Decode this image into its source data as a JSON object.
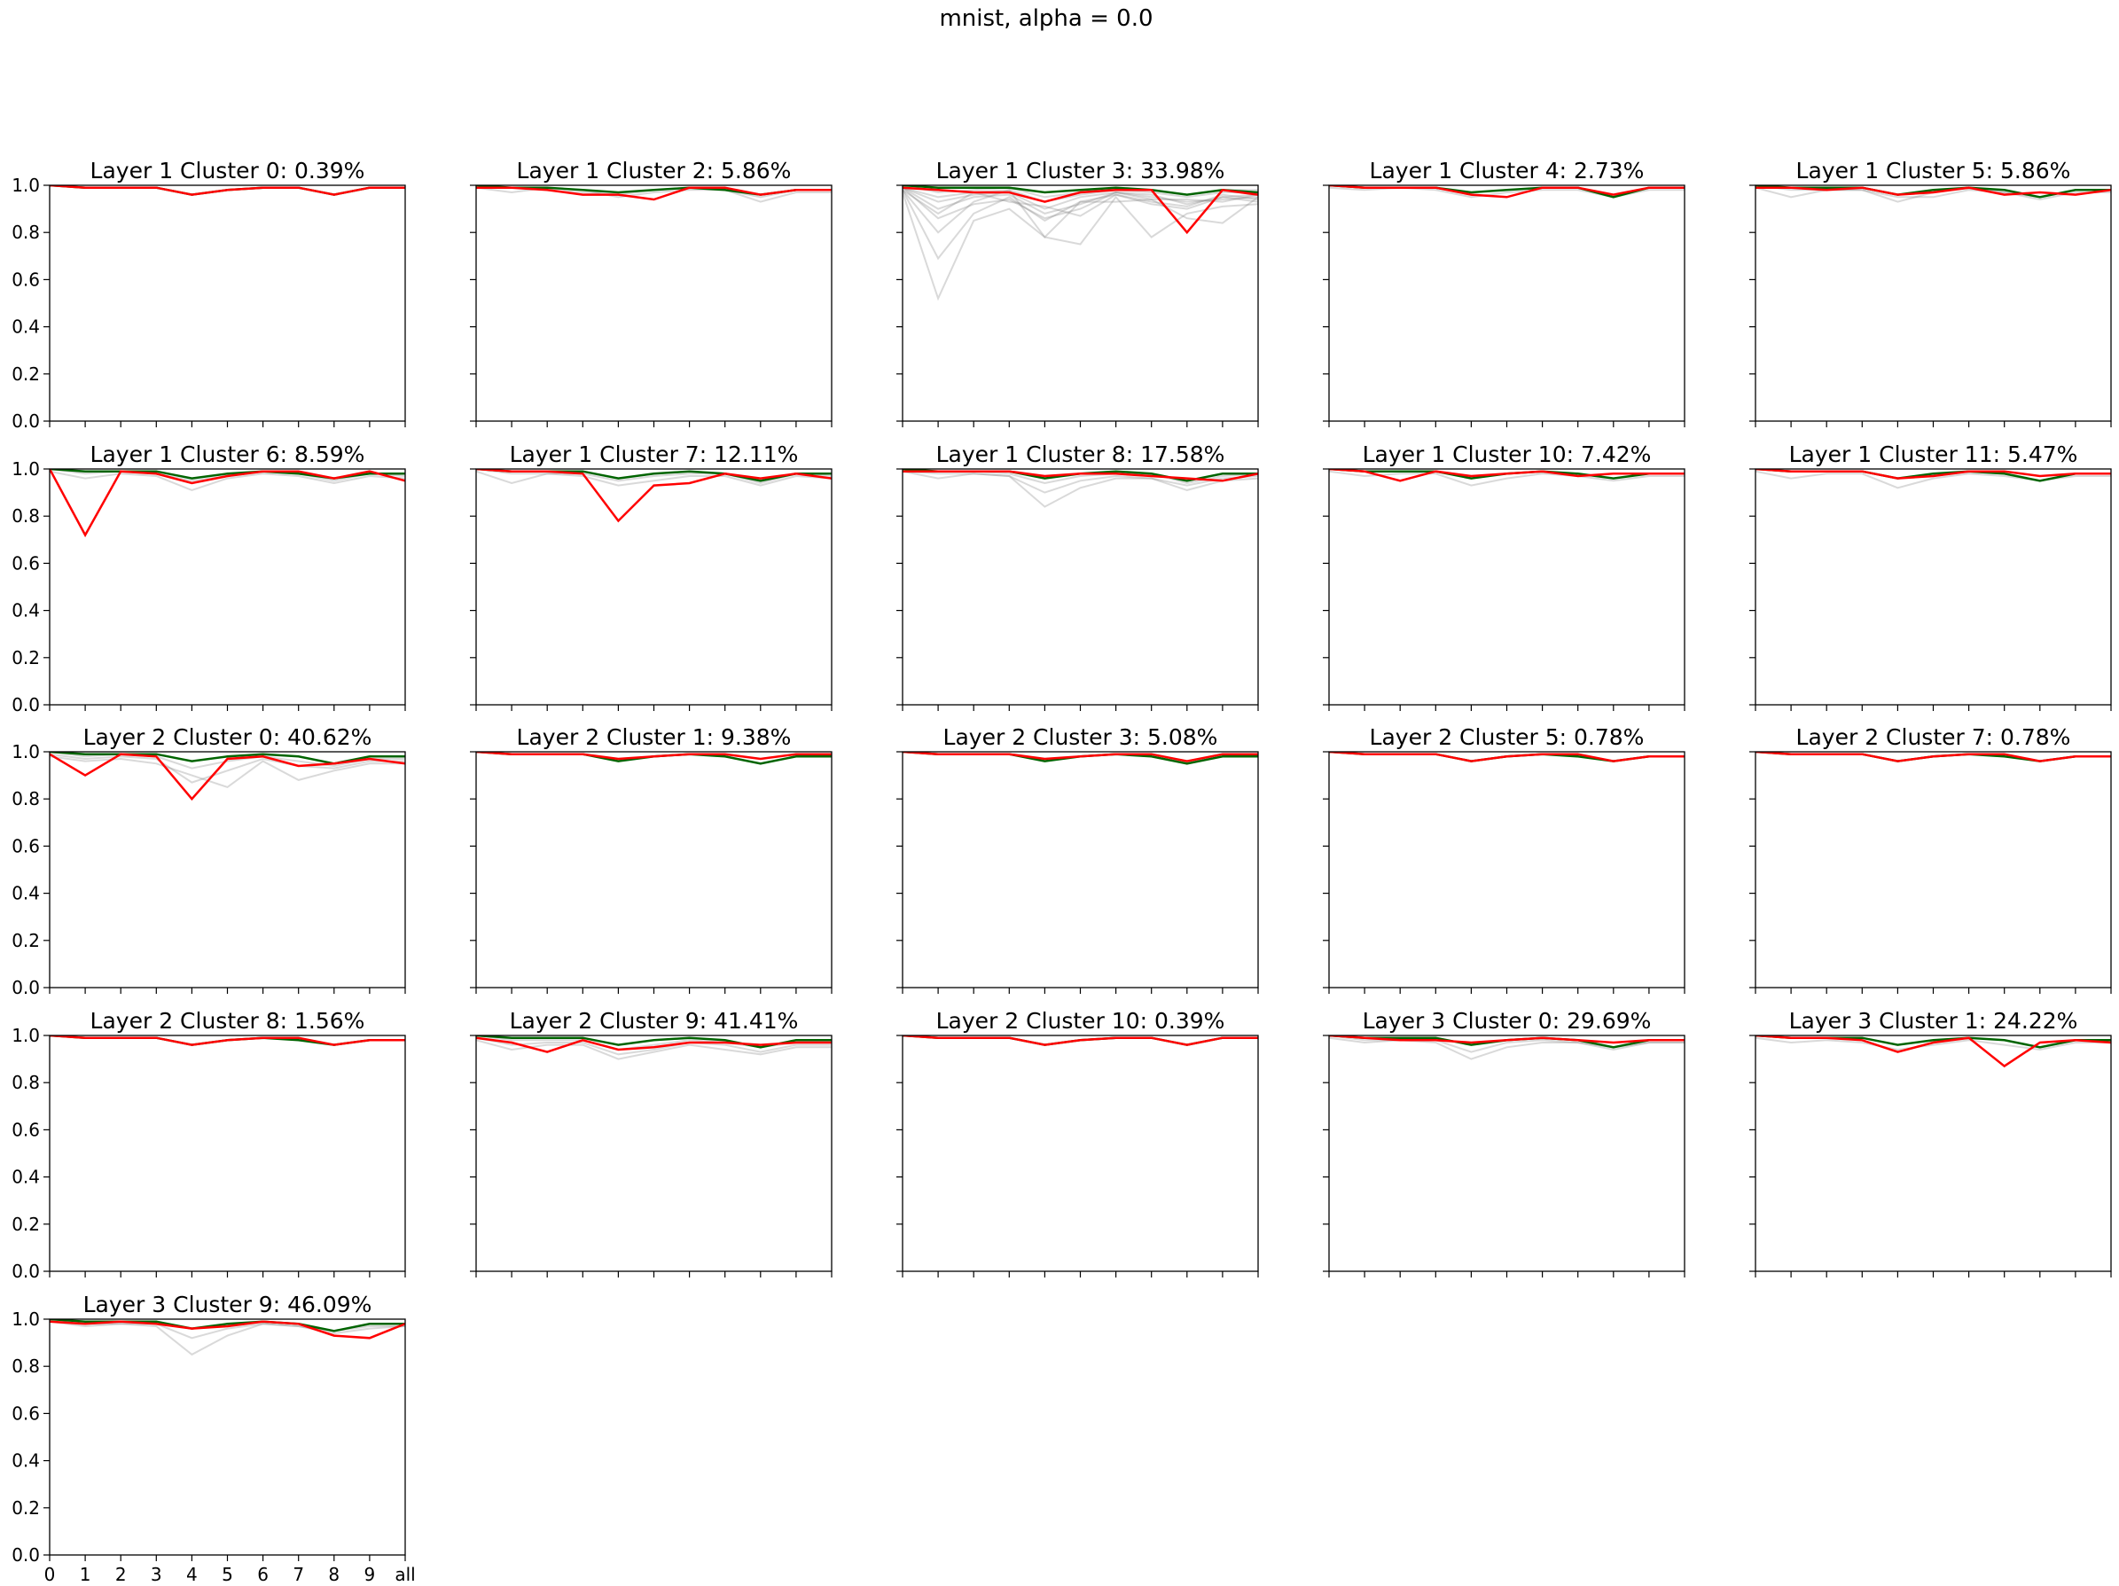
{
  "title": "mnist, alpha = 0.0",
  "chart_data": {
    "type": "line",
    "x_categories": [
      "0",
      "1",
      "2",
      "3",
      "4",
      "5",
      "6",
      "7",
      "8",
      "9",
      "all"
    ],
    "ylim": [
      0.0,
      1.0
    ],
    "yticks": [
      "0.0",
      "0.2",
      "0.4",
      "0.6",
      "0.8",
      "1.0"
    ],
    "colors": {
      "highlight": "#ff0000",
      "top": "#006400",
      "background": "#808080"
    },
    "panels": [
      {
        "title": "Layer 1 Cluster 0: 0.39%",
        "red": [
          1.0,
          0.99,
          0.99,
          0.99,
          0.96,
          0.98,
          0.99,
          0.99,
          0.96,
          0.99,
          0.99
        ],
        "green": [
          1.0,
          0.99,
          0.99,
          0.99,
          0.96,
          0.98,
          0.99,
          0.99,
          0.96,
          0.99,
          0.99
        ],
        "gray": []
      },
      {
        "title": "Layer 1 Cluster 2: 5.86%",
        "red": [
          0.99,
          0.99,
          0.98,
          0.96,
          0.96,
          0.94,
          0.99,
          0.99,
          0.96,
          0.98,
          0.98
        ],
        "green": [
          1.0,
          0.99,
          0.99,
          0.98,
          0.97,
          0.98,
          0.99,
          0.98,
          0.96,
          0.98,
          0.98
        ],
        "gray": [
          [
            0.99,
            0.97,
            0.99,
            0.98,
            0.95,
            0.97,
            0.98,
            0.98,
            0.93,
            0.97,
            0.97
          ],
          [
            1.0,
            0.99,
            0.98,
            0.97,
            0.96,
            0.98,
            0.99,
            0.98,
            0.95,
            0.98,
            0.98
          ]
        ]
      },
      {
        "title": "Layer 1 Cluster 3: 33.98%",
        "red": [
          0.99,
          0.98,
          0.97,
          0.97,
          0.93,
          0.97,
          0.98,
          0.98,
          0.8,
          0.98,
          0.96
        ],
        "green": [
          1.0,
          0.99,
          0.99,
          0.99,
          0.97,
          0.98,
          0.99,
          0.98,
          0.96,
          0.98,
          0.97
        ],
        "gray": [
          [
            0.98,
            0.69,
            0.88,
            0.95,
            0.85,
            0.93,
            0.96,
            0.92,
            0.9,
            0.95,
            0.93
          ],
          [
            0.97,
            0.52,
            0.85,
            0.9,
            0.78,
            0.75,
            0.95,
            0.78,
            0.88,
            0.91,
            0.92
          ],
          [
            0.99,
            0.86,
            0.92,
            0.94,
            0.86,
            0.9,
            0.97,
            0.94,
            0.86,
            0.84,
            0.95
          ],
          [
            0.98,
            0.8,
            0.93,
            0.98,
            0.78,
            0.93,
            0.93,
            0.94,
            0.94,
            0.93,
            0.96
          ],
          [
            0.99,
            0.93,
            0.96,
            0.97,
            0.9,
            0.95,
            0.97,
            0.96,
            0.92,
            0.95,
            0.96
          ],
          [
            0.99,
            0.95,
            0.97,
            0.98,
            0.93,
            0.96,
            0.98,
            0.97,
            0.95,
            0.97,
            0.97
          ],
          [
            1.0,
            0.97,
            0.98,
            0.99,
            0.95,
            0.97,
            0.99,
            0.98,
            0.96,
            0.98,
            0.98
          ],
          [
            0.99,
            0.9,
            0.95,
            0.96,
            0.88,
            0.92,
            0.97,
            0.95,
            0.93,
            0.94,
            0.95
          ],
          [
            0.98,
            0.88,
            0.97,
            0.93,
            0.91,
            0.87,
            0.96,
            0.93,
            0.91,
            0.96,
            0.94
          ]
        ]
      },
      {
        "title": "Layer 1 Cluster 4: 2.73%",
        "red": [
          1.0,
          0.99,
          0.99,
          0.99,
          0.96,
          0.95,
          0.99,
          0.99,
          0.96,
          0.99,
          0.99
        ],
        "green": [
          1.0,
          0.99,
          0.99,
          0.99,
          0.97,
          0.98,
          0.99,
          0.99,
          0.95,
          0.99,
          0.99
        ],
        "gray": [
          [
            0.99,
            0.98,
            0.99,
            0.98,
            0.95,
            0.97,
            0.98,
            0.98,
            0.95,
            0.98,
            0.98
          ]
        ]
      },
      {
        "title": "Layer 1 Cluster 5: 5.86%",
        "red": [
          0.99,
          0.99,
          0.98,
          0.99,
          0.96,
          0.97,
          0.99,
          0.96,
          0.97,
          0.96,
          0.98
        ],
        "green": [
          1.0,
          0.99,
          0.99,
          0.99,
          0.96,
          0.98,
          0.99,
          0.98,
          0.95,
          0.98,
          0.98
        ],
        "gray": [
          [
            0.99,
            0.95,
            0.98,
            0.98,
            0.95,
            0.95,
            0.98,
            0.97,
            0.94,
            0.97,
            0.97
          ],
          [
            1.0,
            0.98,
            0.98,
            0.98,
            0.93,
            0.97,
            0.99,
            0.97,
            0.95,
            0.98,
            0.98
          ]
        ]
      },
      {
        "title": "Layer 1 Cluster 6: 8.59%",
        "red": [
          1.0,
          0.72,
          0.99,
          0.98,
          0.94,
          0.97,
          0.99,
          0.99,
          0.96,
          0.99,
          0.95
        ],
        "green": [
          1.0,
          0.99,
          0.99,
          0.99,
          0.96,
          0.98,
          0.99,
          0.98,
          0.96,
          0.98,
          0.98
        ],
        "gray": [
          [
            0.99,
            0.96,
            0.98,
            0.97,
            0.91,
            0.96,
            0.98,
            0.97,
            0.94,
            0.97,
            0.96
          ],
          [
            1.0,
            0.98,
            0.99,
            0.98,
            0.95,
            0.97,
            0.99,
            0.98,
            0.95,
            0.98,
            0.97
          ]
        ]
      },
      {
        "title": "Layer 1 Cluster 7: 12.11%",
        "red": [
          1.0,
          0.99,
          0.99,
          0.98,
          0.78,
          0.93,
          0.94,
          0.98,
          0.96,
          0.98,
          0.96
        ],
        "green": [
          1.0,
          0.99,
          0.99,
          0.99,
          0.96,
          0.98,
          0.99,
          0.98,
          0.95,
          0.98,
          0.98
        ],
        "gray": [
          [
            0.99,
            0.94,
            0.98,
            0.97,
            0.93,
            0.95,
            0.97,
            0.97,
            0.93,
            0.97,
            0.96
          ],
          [
            1.0,
            0.98,
            0.98,
            0.98,
            0.95,
            0.97,
            0.98,
            0.98,
            0.94,
            0.98,
            0.97
          ]
        ]
      },
      {
        "title": "Layer 1 Cluster 8: 17.58%",
        "red": [
          0.99,
          0.99,
          0.99,
          0.99,
          0.97,
          0.98,
          0.98,
          0.97,
          0.96,
          0.95,
          0.98
        ],
        "green": [
          1.0,
          0.99,
          0.99,
          0.99,
          0.96,
          0.98,
          0.99,
          0.98,
          0.95,
          0.98,
          0.98
        ],
        "gray": [
          [
            0.99,
            0.96,
            0.98,
            0.97,
            0.84,
            0.92,
            0.96,
            0.96,
            0.91,
            0.95,
            0.96
          ],
          [
            0.99,
            0.98,
            0.98,
            0.97,
            0.9,
            0.95,
            0.97,
            0.96,
            0.93,
            0.96,
            0.97
          ],
          [
            1.0,
            0.99,
            0.99,
            0.98,
            0.94,
            0.97,
            0.98,
            0.98,
            0.94,
            0.97,
            0.98
          ]
        ]
      },
      {
        "title": "Layer 1 Cluster 10: 7.42%",
        "red": [
          1.0,
          0.99,
          0.95,
          0.99,
          0.97,
          0.98,
          0.99,
          0.97,
          0.98,
          0.98,
          0.98
        ],
        "green": [
          1.0,
          0.99,
          0.99,
          0.99,
          0.96,
          0.98,
          0.99,
          0.98,
          0.96,
          0.98,
          0.98
        ],
        "gray": [
          [
            0.99,
            0.97,
            0.98,
            0.98,
            0.93,
            0.96,
            0.98,
            0.97,
            0.95,
            0.97,
            0.97
          ]
        ]
      },
      {
        "title": "Layer 1 Cluster 11: 5.47%",
        "red": [
          1.0,
          0.99,
          0.99,
          0.99,
          0.96,
          0.97,
          0.99,
          0.99,
          0.97,
          0.98,
          0.98
        ],
        "green": [
          1.0,
          0.99,
          0.99,
          0.99,
          0.96,
          0.98,
          0.99,
          0.98,
          0.95,
          0.98,
          0.98
        ],
        "gray": [
          [
            0.99,
            0.96,
            0.98,
            0.98,
            0.92,
            0.96,
            0.98,
            0.97,
            0.95,
            0.97,
            0.97
          ]
        ]
      },
      {
        "title": "Layer 2 Cluster 0: 40.62%",
        "red": [
          0.99,
          0.9,
          0.99,
          0.98,
          0.8,
          0.97,
          0.98,
          0.94,
          0.95,
          0.97,
          0.95
        ],
        "green": [
          1.0,
          0.99,
          0.99,
          0.99,
          0.96,
          0.98,
          0.99,
          0.98,
          0.95,
          0.98,
          0.98
        ],
        "gray": [
          [
            0.98,
            0.96,
            0.97,
            0.95,
            0.9,
            0.85,
            0.96,
            0.88,
            0.92,
            0.95,
            0.95
          ],
          [
            0.99,
            0.97,
            0.98,
            0.97,
            0.87,
            0.92,
            0.97,
            0.94,
            0.93,
            0.96,
            0.96
          ],
          [
            1.0,
            0.98,
            0.99,
            0.98,
            0.93,
            0.96,
            0.98,
            0.96,
            0.94,
            0.97,
            0.97
          ]
        ]
      },
      {
        "title": "Layer 2 Cluster 1: 9.38%",
        "red": [
          1.0,
          0.99,
          0.99,
          0.99,
          0.97,
          0.98,
          0.99,
          0.99,
          0.97,
          0.99,
          0.99
        ],
        "green": [
          1.0,
          0.99,
          0.99,
          0.99,
          0.96,
          0.98,
          0.99,
          0.98,
          0.95,
          0.98,
          0.98
        ],
        "gray": []
      },
      {
        "title": "Layer 2 Cluster 3: 5.08%",
        "red": [
          1.0,
          0.99,
          0.99,
          0.99,
          0.97,
          0.98,
          0.99,
          0.99,
          0.96,
          0.99,
          0.99
        ],
        "green": [
          1.0,
          0.99,
          0.99,
          0.99,
          0.96,
          0.98,
          0.99,
          0.98,
          0.95,
          0.98,
          0.98
        ],
        "gray": []
      },
      {
        "title": "Layer 2 Cluster 5: 0.78%",
        "red": [
          1.0,
          0.99,
          0.99,
          0.99,
          0.96,
          0.98,
          0.99,
          0.99,
          0.96,
          0.98,
          0.98
        ],
        "green": [
          1.0,
          0.99,
          0.99,
          0.99,
          0.96,
          0.98,
          0.99,
          0.98,
          0.96,
          0.98,
          0.98
        ],
        "gray": []
      },
      {
        "title": "Layer 2 Cluster 7: 0.78%",
        "red": [
          1.0,
          0.99,
          0.99,
          0.99,
          0.96,
          0.98,
          0.99,
          0.99,
          0.96,
          0.98,
          0.98
        ],
        "green": [
          1.0,
          0.99,
          0.99,
          0.99,
          0.96,
          0.98,
          0.99,
          0.98,
          0.96,
          0.98,
          0.98
        ],
        "gray": []
      },
      {
        "title": "Layer 2 Cluster 8: 1.56%",
        "red": [
          1.0,
          0.99,
          0.99,
          0.99,
          0.96,
          0.98,
          0.99,
          0.99,
          0.96,
          0.98,
          0.98
        ],
        "green": [
          1.0,
          0.99,
          0.99,
          0.99,
          0.96,
          0.98,
          0.99,
          0.98,
          0.96,
          0.98,
          0.98
        ],
        "gray": []
      },
      {
        "title": "Layer 2 Cluster 9: 41.41%",
        "red": [
          0.99,
          0.97,
          0.93,
          0.98,
          0.94,
          0.95,
          0.97,
          0.97,
          0.96,
          0.97,
          0.97
        ],
        "green": [
          1.0,
          0.99,
          0.99,
          0.99,
          0.96,
          0.98,
          0.99,
          0.98,
          0.95,
          0.98,
          0.98
        ],
        "gray": [
          [
            0.98,
            0.94,
            0.96,
            0.96,
            0.9,
            0.93,
            0.96,
            0.94,
            0.92,
            0.95,
            0.95
          ],
          [
            0.99,
            0.96,
            0.97,
            0.97,
            0.92,
            0.94,
            0.97,
            0.96,
            0.93,
            0.96,
            0.96
          ],
          [
            1.0,
            0.98,
            0.98,
            0.98,
            0.94,
            0.96,
            0.98,
            0.97,
            0.95,
            0.97,
            0.97
          ]
        ]
      },
      {
        "title": "Layer 2 Cluster 10: 0.39%",
        "red": [
          1.0,
          0.99,
          0.99,
          0.99,
          0.96,
          0.98,
          0.99,
          0.99,
          0.96,
          0.99,
          0.99
        ],
        "green": [
          1.0,
          0.99,
          0.99,
          0.99,
          0.96,
          0.98,
          0.99,
          0.99,
          0.96,
          0.99,
          0.99
        ],
        "gray": []
      },
      {
        "title": "Layer 3 Cluster 0: 29.69%",
        "red": [
          1.0,
          0.99,
          0.98,
          0.98,
          0.97,
          0.98,
          0.99,
          0.98,
          0.97,
          0.98,
          0.98
        ],
        "green": [
          1.0,
          0.99,
          0.99,
          0.99,
          0.96,
          0.98,
          0.99,
          0.98,
          0.95,
          0.98,
          0.98
        ],
        "gray": [
          [
            0.99,
            0.97,
            0.98,
            0.97,
            0.9,
            0.95,
            0.97,
            0.97,
            0.94,
            0.97,
            0.97
          ],
          [
            1.0,
            0.98,
            0.98,
            0.98,
            0.93,
            0.97,
            0.98,
            0.97,
            0.95,
            0.97,
            0.97
          ]
        ]
      },
      {
        "title": "Layer 3 Cluster 1: 24.22%",
        "red": [
          1.0,
          0.99,
          0.99,
          0.98,
          0.93,
          0.97,
          0.99,
          0.87,
          0.97,
          0.98,
          0.97
        ],
        "green": [
          1.0,
          0.99,
          0.99,
          0.99,
          0.96,
          0.98,
          0.99,
          0.98,
          0.95,
          0.98,
          0.98
        ],
        "gray": [
          [
            0.99,
            0.97,
            0.98,
            0.97,
            0.94,
            0.96,
            0.98,
            0.96,
            0.94,
            0.97,
            0.97
          ]
        ]
      },
      {
        "title": "Layer 3 Cluster 9: 46.09%",
        "red": [
          0.99,
          0.98,
          0.99,
          0.98,
          0.96,
          0.97,
          0.99,
          0.98,
          0.93,
          0.92,
          0.98
        ],
        "green": [
          1.0,
          0.99,
          0.99,
          0.99,
          0.96,
          0.98,
          0.99,
          0.98,
          0.95,
          0.98,
          0.98
        ],
        "gray": [
          [
            0.99,
            0.97,
            0.98,
            0.97,
            0.85,
            0.93,
            0.98,
            0.97,
            0.94,
            0.96,
            0.97
          ],
          [
            1.0,
            0.98,
            0.98,
            0.98,
            0.92,
            0.96,
            0.98,
            0.97,
            0.95,
            0.97,
            0.97
          ]
        ]
      }
    ]
  }
}
